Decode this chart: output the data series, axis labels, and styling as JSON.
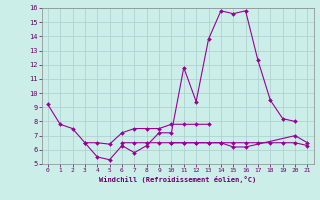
{
  "xlabel": "Windchill (Refroidissement éolien,°C)",
  "background_color": "#cceee8",
  "grid_color": "#aacccc",
  "line_color": "#990099",
  "xlim": [
    -0.5,
    21.5
  ],
  "ylim": [
    5,
    16
  ],
  "yticks": [
    5,
    6,
    7,
    8,
    9,
    10,
    11,
    12,
    13,
    14,
    15,
    16
  ],
  "xticks": [
    0,
    1,
    2,
    3,
    4,
    5,
    6,
    7,
    8,
    9,
    10,
    11,
    12,
    13,
    14,
    15,
    16,
    17,
    18,
    19,
    20,
    21
  ],
  "series": [
    [
      9.2,
      7.8,
      7.5,
      6.5,
      5.5,
      5.3,
      6.3,
      5.8,
      6.3,
      7.2,
      7.2,
      11.8,
      9.4,
      13.8,
      15.8,
      15.6,
      15.8,
      12.3,
      9.5,
      8.2,
      8.0,
      null
    ],
    [
      null,
      null,
      null,
      6.5,
      6.5,
      6.4,
      7.2,
      7.5,
      7.5,
      7.5,
      7.8,
      7.8,
      7.8,
      7.8,
      null,
      null,
      null,
      null,
      null,
      null,
      null,
      null
    ],
    [
      null,
      null,
      null,
      null,
      null,
      null,
      6.5,
      6.5,
      6.5,
      6.5,
      6.5,
      6.5,
      6.5,
      6.5,
      6.5,
      6.2,
      6.2,
      null,
      null,
      null,
      7.0,
      6.5
    ],
    [
      null,
      null,
      null,
      null,
      null,
      null,
      null,
      null,
      null,
      null,
      6.5,
      6.5,
      6.5,
      6.5,
      6.5,
      6.5,
      6.5,
      6.5,
      6.5,
      6.5,
      6.5,
      6.3
    ]
  ]
}
